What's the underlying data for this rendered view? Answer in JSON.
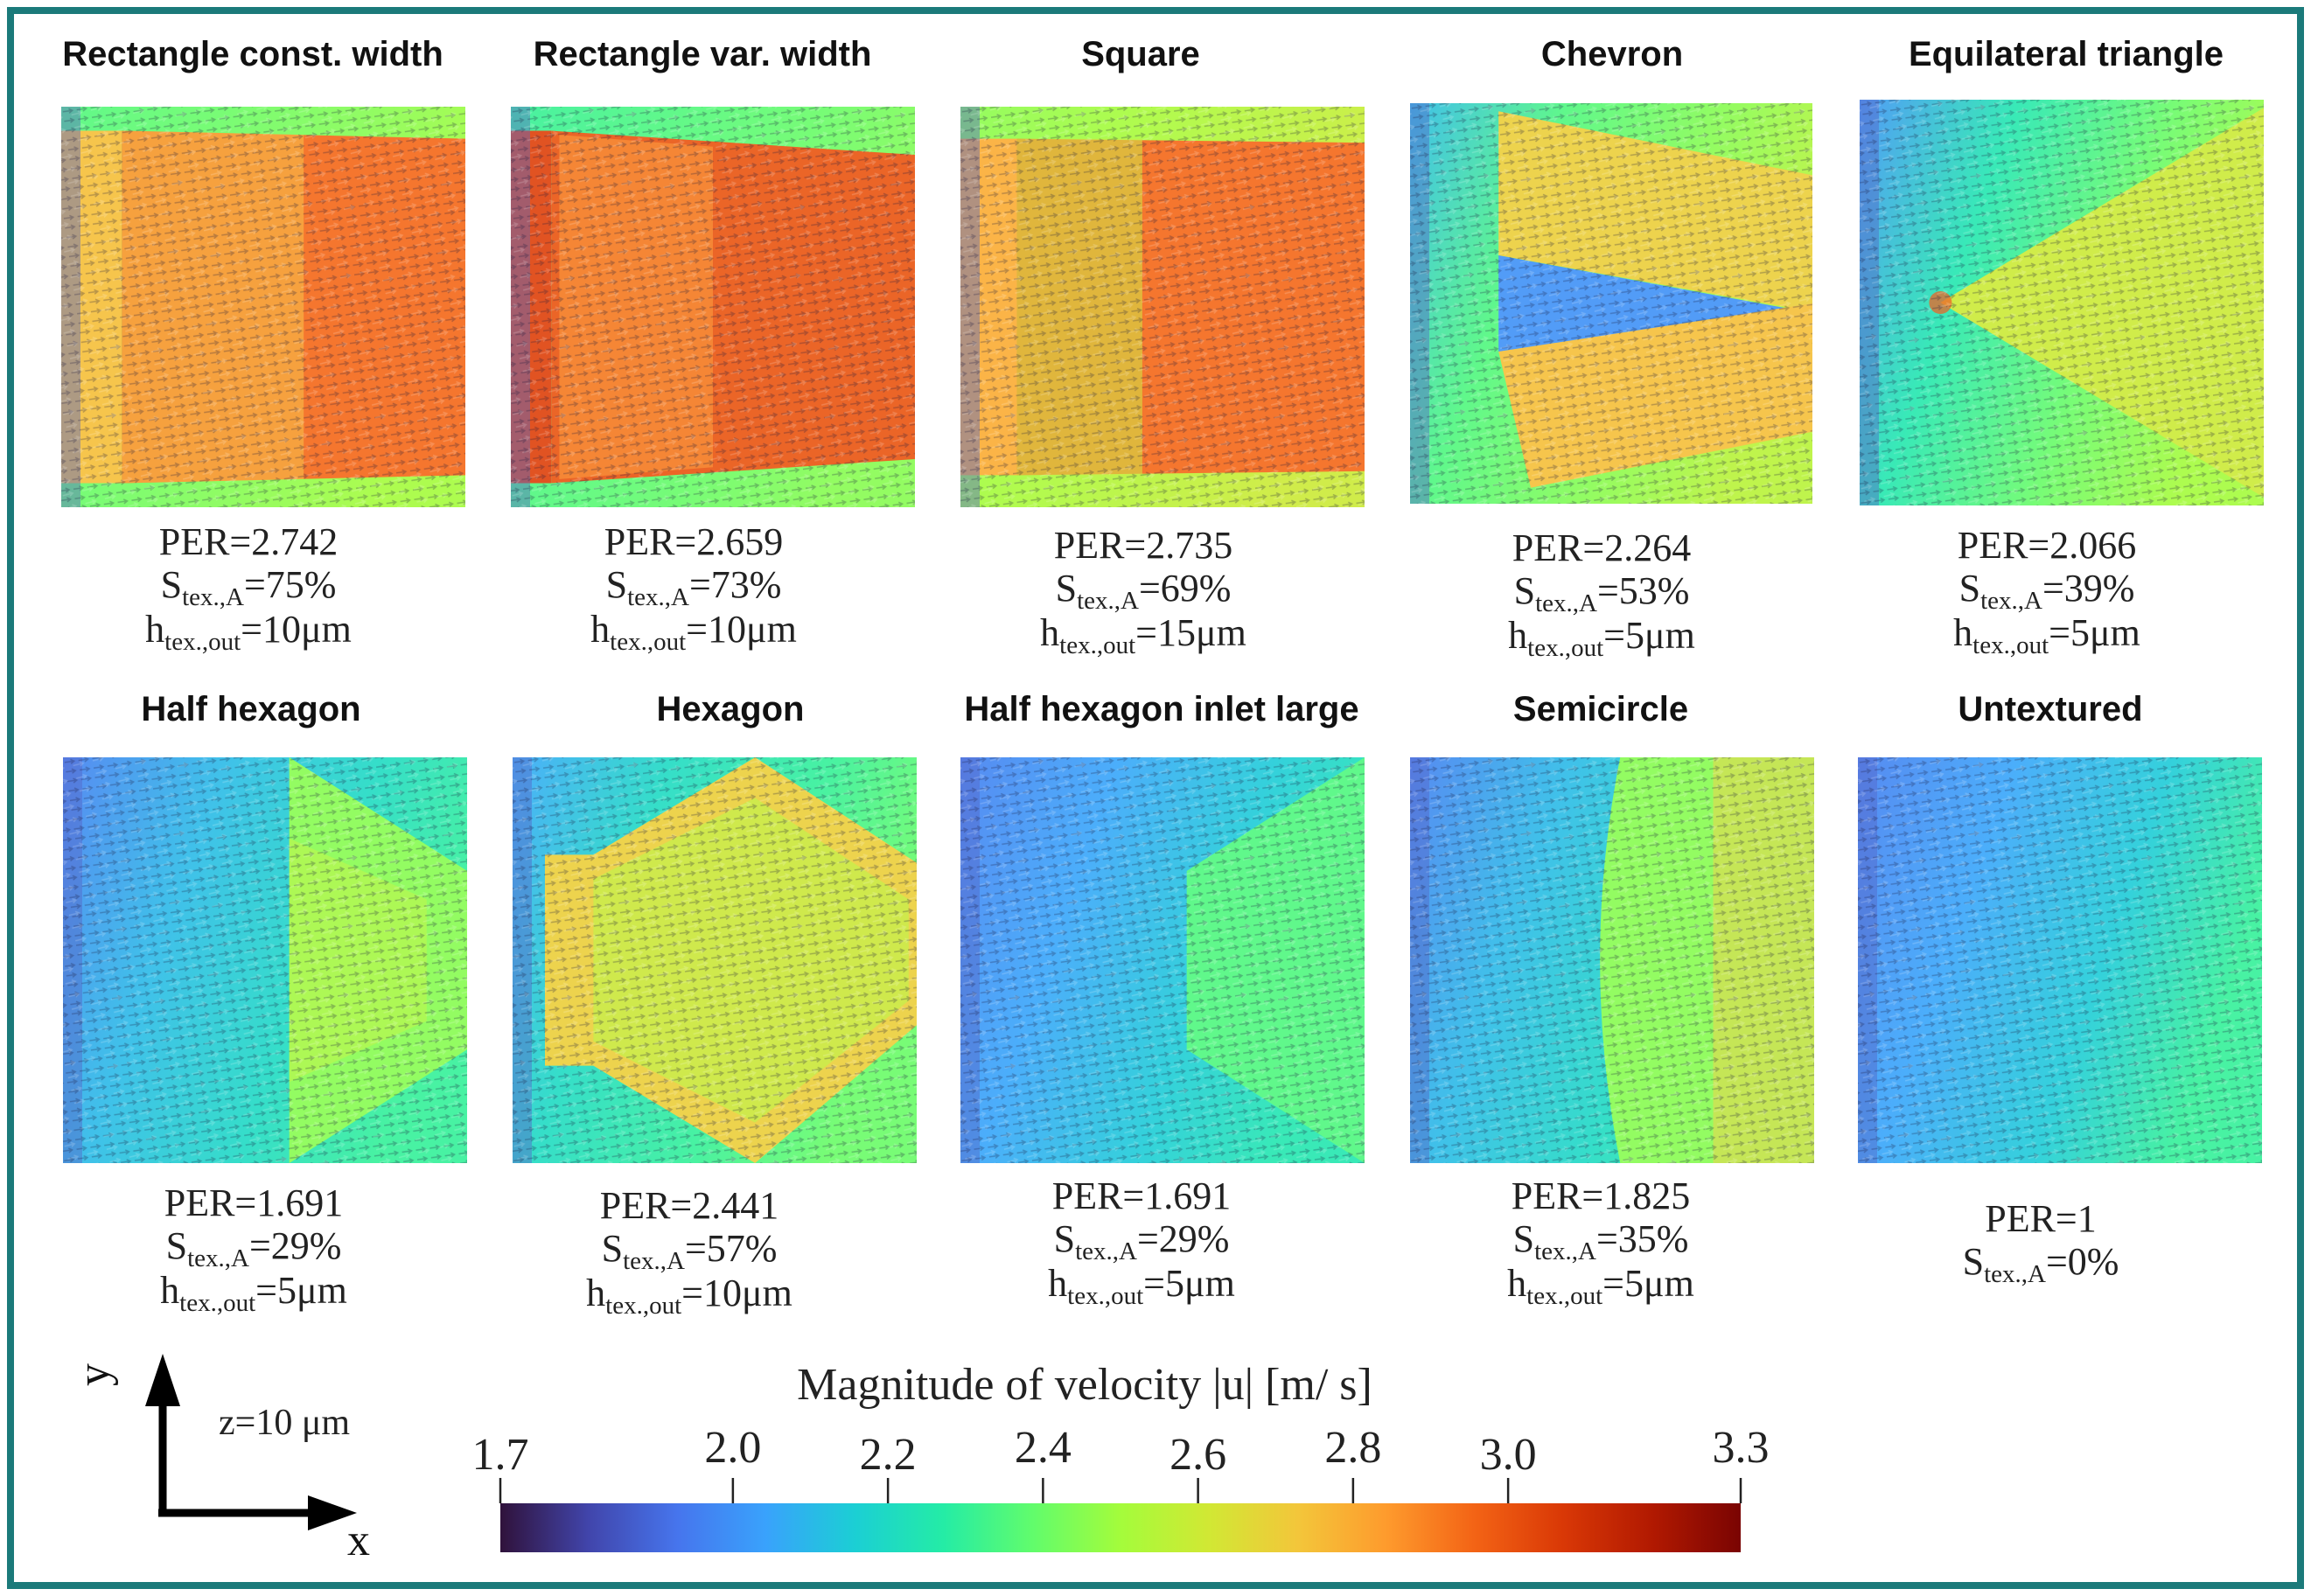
{
  "figure": {
    "frame_color": "#1b7a7a",
    "panels": [
      {
        "title": "Rectangle const. width",
        "per": "PER=2.742",
        "s_value": "=75%",
        "h_value": "=10μm",
        "shape": "rect"
      },
      {
        "title": "Rectangle var. width",
        "per": "PER=2.659",
        "s_value": "=73%",
        "h_value": "=10μm",
        "shape": "rectvar"
      },
      {
        "title": "Square",
        "per": "PER=2.735",
        "s_value": "=69%",
        "h_value": "=15μm",
        "shape": "square"
      },
      {
        "title": "Chevron",
        "per": "PER=2.264",
        "s_value": "=53%",
        "h_value": "=5μm",
        "shape": "chevron"
      },
      {
        "title": "Equilateral triangle",
        "per": "PER=2.066",
        "s_value": "=39%",
        "h_value": "=5μm",
        "shape": "triangle"
      },
      {
        "title": "Half hexagon",
        "per": "PER=1.691",
        "s_value": "=29%",
        "h_value": "=5μm",
        "shape": "halfhex"
      },
      {
        "title": "Hexagon",
        "per": "PER=2.441",
        "s_value": "=57%",
        "h_value": "=10μm",
        "shape": "hexagon"
      },
      {
        "title": "Half hexagon inlet large",
        "per": "PER=1.691",
        "s_value": "=29%",
        "h_value": "=5μm",
        "shape": "halfhexlarge"
      },
      {
        "title": "Semicircle",
        "per": "PER=1.825",
        "s_value": "=35%",
        "h_value": "=5μm",
        "shape": "semicircle"
      },
      {
        "title": "Untextured",
        "per": "PER=1",
        "s_value": "=0%",
        "h_value": null,
        "shape": "none"
      }
    ],
    "s_symbol": "S",
    "s_subscript": "tex.,A",
    "h_symbol": "h",
    "h_subscript": "tex.,out",
    "colorbar": {
      "label": "Magnitude of velocity |u| [m/ s]",
      "min": 1.7,
      "max": 3.3,
      "ticks": [
        "1.7",
        "2.0",
        "2.2",
        "2.4",
        "2.6",
        "2.8",
        "3.0",
        "3.3"
      ],
      "colormap": [
        "#30123b",
        "#4145ab",
        "#4675ed",
        "#39a2fc",
        "#1bcfd4",
        "#24eca6",
        "#61fc6c",
        "#a4fc3b",
        "#d1e834",
        "#f3c63a",
        "#fe9b2d",
        "#f36315",
        "#d93806",
        "#b11901",
        "#7a0402"
      ]
    },
    "axes": {
      "y_label": "y",
      "x_label": "x",
      "z_label": "z=10 μm"
    }
  }
}
